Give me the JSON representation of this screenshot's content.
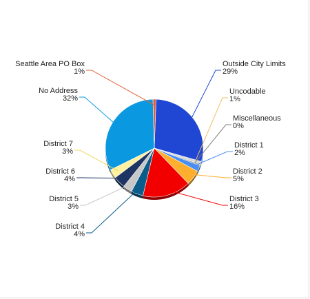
{
  "chart_data": {
    "type": "pie",
    "title": "",
    "slices": [
      {
        "name": "Outside City Limits",
        "pct_label": "29%",
        "value": 29,
        "color": "#2047D3"
      },
      {
        "name": "Uncodable",
        "pct_label": "1%",
        "value": 1,
        "color": "#D8D8D8"
      },
      {
        "name": "Miscellaneous",
        "pct_label": "0%",
        "value": 0.4,
        "color": "#7F7F7F"
      },
      {
        "name": "District 1",
        "pct_label": "2%",
        "value": 2,
        "color": "#4A8FF0"
      },
      {
        "name": "District 2",
        "pct_label": "5%",
        "value": 5,
        "color": "#FFAE2E"
      },
      {
        "name": "District 3",
        "pct_label": "16%",
        "value": 16,
        "color": "#F20000"
      },
      {
        "name": "District 4",
        "pct_label": "4%",
        "value": 4,
        "color": "#0A5C8A"
      },
      {
        "name": "District 5",
        "pct_label": "3%",
        "value": 3,
        "color": "#C7C7C7"
      },
      {
        "name": "District 6",
        "pct_label": "4%",
        "value": 4,
        "color": "#1E3564"
      },
      {
        "name": "District 7",
        "pct_label": "3%",
        "value": 3,
        "color": "#FFF1A0"
      },
      {
        "name": "No Address",
        "pct_label": "32%",
        "value": 32,
        "color": "#0A98E0"
      },
      {
        "name": "Seattle Area PO Box",
        "pct_label": "1%",
        "value": 1,
        "color": "#E0603A"
      }
    ]
  }
}
